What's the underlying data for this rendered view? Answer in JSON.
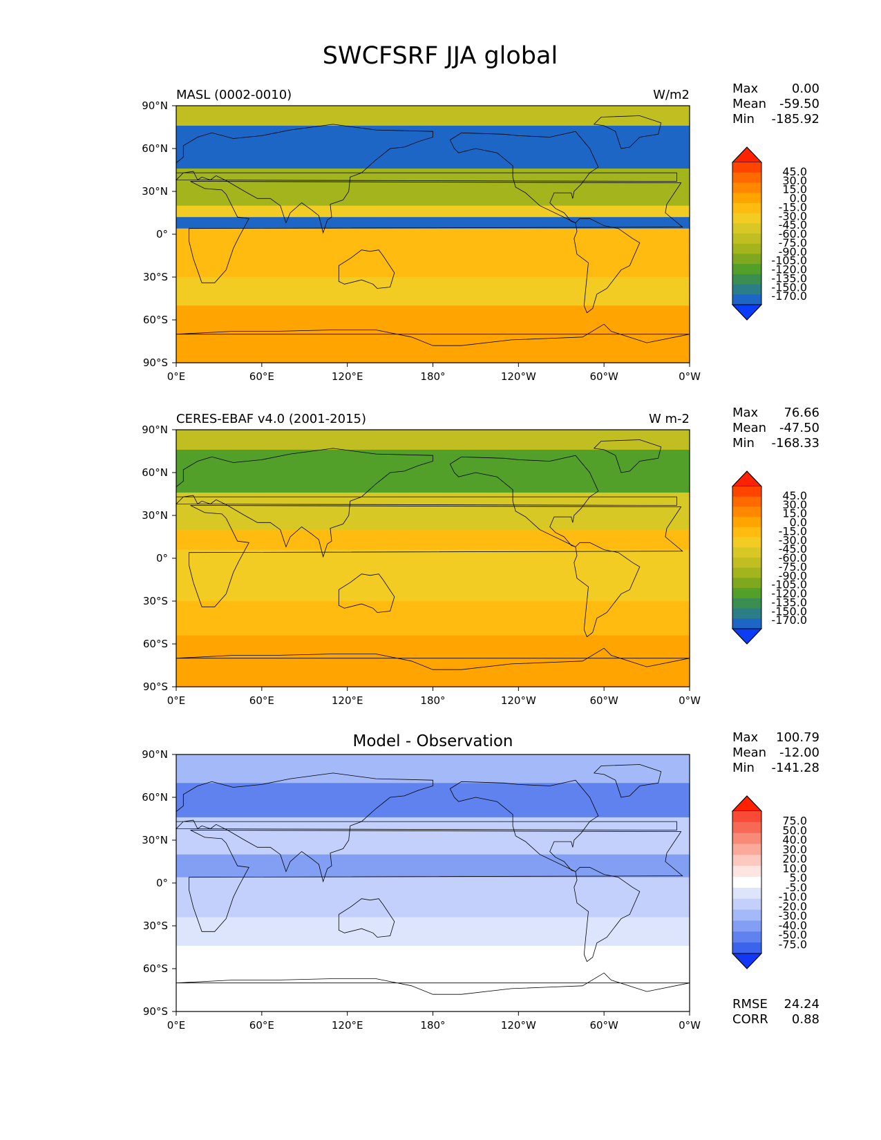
{
  "title": "SWCFSRF JJA global",
  "lat_ticks": [
    "90°N",
    "60°N",
    "30°N",
    "0°",
    "30°S",
    "60°S",
    "90°S"
  ],
  "lon_ticks": [
    "0°E",
    "60°E",
    "120°E",
    "180°",
    "120°W",
    "60°W",
    "0°W"
  ],
  "color_scale_main": [
    "45.0",
    "30.0",
    "15.0",
    "0.0",
    "-15.0",
    "-30.0",
    "-45.0",
    "-60.0",
    "-75.0",
    "-90.0",
    "-105.0",
    "-120.0",
    "-135.0",
    "-150.0",
    "-170.0"
  ],
  "color_scale_diff": [
    "75.0",
    "50.0",
    "40.0",
    "30.0",
    "20.0",
    "10.0",
    "5.0",
    "-5.0",
    "-10.0",
    "-20.0",
    "-30.0",
    "-40.0",
    "-50.0",
    "-75.0"
  ],
  "colors": {
    "main": [
      "#ff2200",
      "#ff4400",
      "#ff6a00",
      "#ff8800",
      "#ffa400",
      "#ffbb10",
      "#f2cc22",
      "#d8c825",
      "#c0be20",
      "#a3b41c",
      "#7fa81e",
      "#52a02a",
      "#3a8e52",
      "#2b7e86",
      "#1d66c6",
      "#0a3df5"
    ],
    "diff": [
      "#ff2000",
      "#f84a35",
      "#f66a55",
      "#f78b78",
      "#f9aa9a",
      "#fbc9c0",
      "#fde6e2",
      "#ffffff",
      "#dde5fd",
      "#c2d0fb",
      "#a3b9f8",
      "#839ff4",
      "#5f82ef",
      "#3b63ec",
      "#1337f7"
    ]
  },
  "panels": [
    {
      "left_title": "MASL (0002-0010)",
      "right_title": "W/m2",
      "center_title": "",
      "stats": [
        {
          "label": "Max",
          "value": "0.00"
        },
        {
          "label": "Mean",
          "value": "-59.50"
        },
        {
          "label": "Min",
          "value": "-185.92"
        }
      ]
    },
    {
      "left_title": "CERES-EBAF v4.0 (2001-2015)",
      "right_title": "W m-2",
      "center_title": "",
      "stats": [
        {
          "label": "Max",
          "value": "76.66"
        },
        {
          "label": "Mean",
          "value": "-47.50"
        },
        {
          "label": "Min",
          "value": "-168.33"
        }
      ]
    },
    {
      "left_title": "",
      "right_title": "",
      "center_title": "Model - Observation",
      "stats": [
        {
          "label": "Max",
          "value": "100.79"
        },
        {
          "label": "Mean",
          "value": "-12.00"
        },
        {
          "label": "Min",
          "value": "-141.28"
        }
      ],
      "bottom_stats": [
        {
          "label": "RMSE",
          "value": "24.24"
        },
        {
          "label": "CORR",
          "value": "0.88"
        }
      ]
    }
  ]
}
